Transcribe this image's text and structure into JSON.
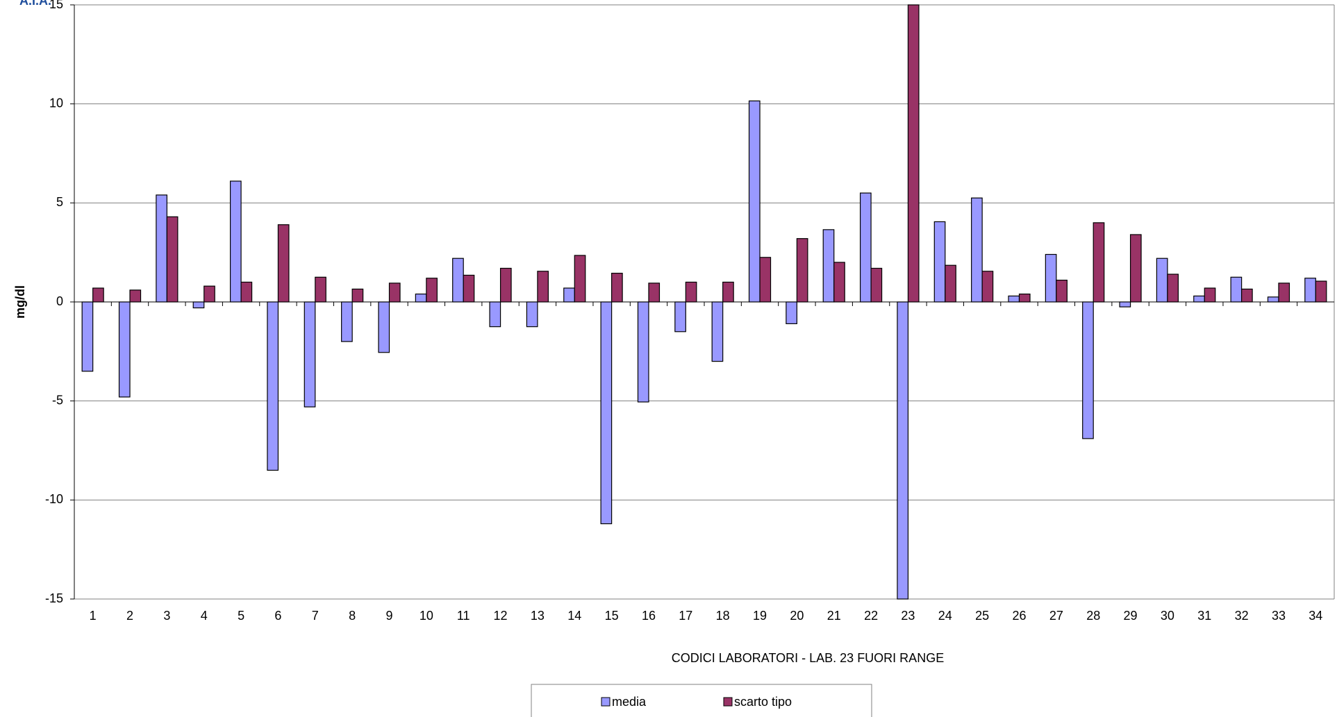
{
  "logo": "A.I.A.",
  "chart_data": {
    "type": "bar",
    "x_label": "CODICI LABORATORI - LAB.  23 FUORI RANGE",
    "y_label": "mg/dl",
    "categories": [
      "1",
      "2",
      "3",
      "4",
      "5",
      "6",
      "7",
      "8",
      "9",
      "10",
      "11",
      "12",
      "13",
      "14",
      "15",
      "16",
      "17",
      "18",
      "19",
      "20",
      "21",
      "22",
      "23",
      "24",
      "25",
      "26",
      "27",
      "28",
      "29",
      "30",
      "31",
      "32",
      "33",
      "34"
    ],
    "series": [
      {
        "name": "media",
        "color": "#9999ff",
        "values": [
          -3.5,
          -4.8,
          5.4,
          -0.3,
          6.1,
          -8.5,
          -5.3,
          -2.0,
          -2.55,
          0.4,
          2.2,
          -1.25,
          -1.25,
          0.7,
          -11.2,
          -5.05,
          -1.5,
          -3.0,
          10.15,
          -1.1,
          3.65,
          5.5,
          -15,
          4.05,
          5.25,
          0.3,
          2.4,
          -6.9,
          -0.25,
          2.2,
          0.3,
          1.25,
          0.25,
          1.2
        ]
      },
      {
        "name": "scarto tipo",
        "color": "#993366",
        "values": [
          0.7,
          0.6,
          4.3,
          0.8,
          1.0,
          3.9,
          1.25,
          0.65,
          0.95,
          1.2,
          1.35,
          1.7,
          1.55,
          2.35,
          1.45,
          0.95,
          1.0,
          1.0,
          2.25,
          3.2,
          2.0,
          1.7,
          15,
          1.85,
          1.55,
          0.4,
          1.1,
          4.0,
          3.4,
          1.4,
          0.7,
          0.65,
          0.95,
          1.05
        ]
      }
    ],
    "ylim": [
      -15,
      15
    ],
    "yticks": [
      -15,
      -10,
      -5,
      0,
      5,
      10,
      15
    ],
    "grid": true
  }
}
